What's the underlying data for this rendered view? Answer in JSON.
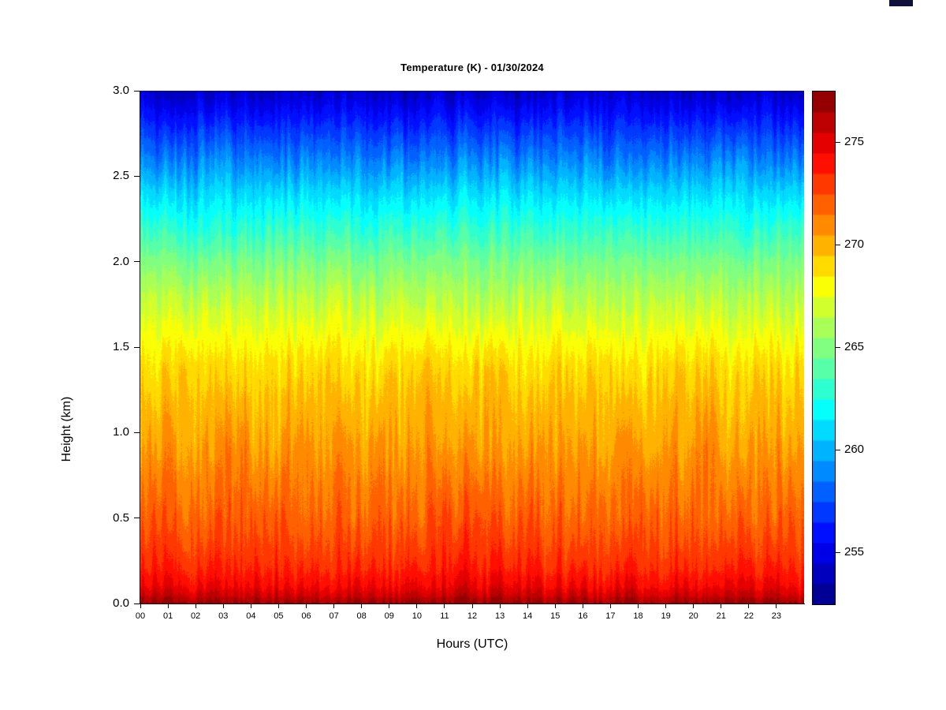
{
  "chart_data": {
    "type": "heatmap",
    "title": "Temperature (K) - 01/30/2024",
    "xlabel": "Hours (UTC)",
    "ylabel": "Height (km)",
    "x_ticks": [
      "00",
      "01",
      "02",
      "03",
      "04",
      "05",
      "06",
      "07",
      "08",
      "09",
      "10",
      "11",
      "12",
      "13",
      "14",
      "15",
      "16",
      "17",
      "18",
      "19",
      "20",
      "21",
      "22",
      "23"
    ],
    "x_range_hours": [
      0,
      24
    ],
    "y_ticks": [
      "0.0",
      "0.5",
      "1.0",
      "1.5",
      "2.0",
      "2.5",
      "3.0"
    ],
    "y_range_km": [
      0,
      3
    ],
    "grid": false,
    "legend_position": "right-colorbar",
    "colorbar": {
      "ticks": [
        255,
        260,
        265,
        270,
        275
      ],
      "range_K": [
        252.5,
        277.5
      ],
      "levels": 25,
      "colormap": "jet"
    },
    "mean_profile": {
      "heights_km": [
        0.0,
        0.05,
        0.1,
        0.2,
        0.3,
        0.5,
        0.7,
        1.0,
        1.2,
        1.4,
        1.6,
        1.8,
        2.0,
        2.2,
        2.4,
        2.6,
        2.8,
        3.0
      ],
      "temperature_K": [
        276.8,
        275.6,
        274.6,
        273.6,
        273.0,
        272.1,
        271.4,
        270.3,
        269.7,
        268.9,
        267.6,
        266.3,
        264.8,
        262.9,
        261.0,
        258.8,
        256.6,
        254.2
      ]
    },
    "noise": {
      "std_K": 1.1,
      "structure": "vertical-streaks"
    }
  }
}
